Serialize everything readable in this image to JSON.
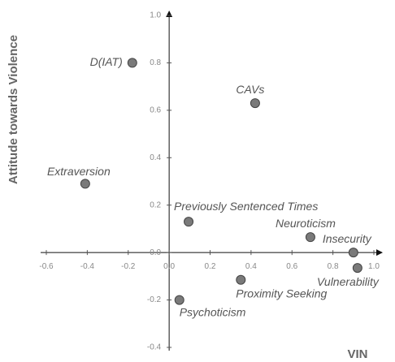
{
  "chart_data": {
    "type": "scatter",
    "xlabel": "VIN",
    "ylabel": "Attitude towards Violence",
    "labels": [
      "D(IAT)",
      "CAVs",
      "Extraversion",
      "Previously Sentenced Times",
      "Neuroticism",
      "Insecurity",
      "Vulnerability",
      "Proximity Seeking",
      "Psychoticism"
    ],
    "x": [
      -0.18,
      0.42,
      -0.41,
      0.095,
      0.69,
      0.9,
      0.92,
      0.35,
      0.05
    ],
    "y": [
      0.8,
      0.63,
      0.29,
      0.13,
      0.065,
      0.0,
      -0.065,
      -0.115,
      -0.2
    ],
    "color": "#7a7a7a",
    "xlim": [
      -0.6,
      1.0
    ],
    "ylim": [
      -0.4,
      1.0
    ],
    "xticks": [
      -0.6,
      -0.4,
      -0.2,
      {
        "value": 0,
        "label": "0.0"
      },
      0.2,
      0.4,
      0.6,
      0.8,
      {
        "value": 1,
        "label": "1.0"
      }
    ],
    "yticks": [
      -0.4,
      -0.2,
      {
        "value": 0,
        "label": "0.0"
      },
      0.2,
      0.4,
      0.6,
      0.8,
      {
        "value": 1,
        "label": "1.0"
      }
    ]
  }
}
